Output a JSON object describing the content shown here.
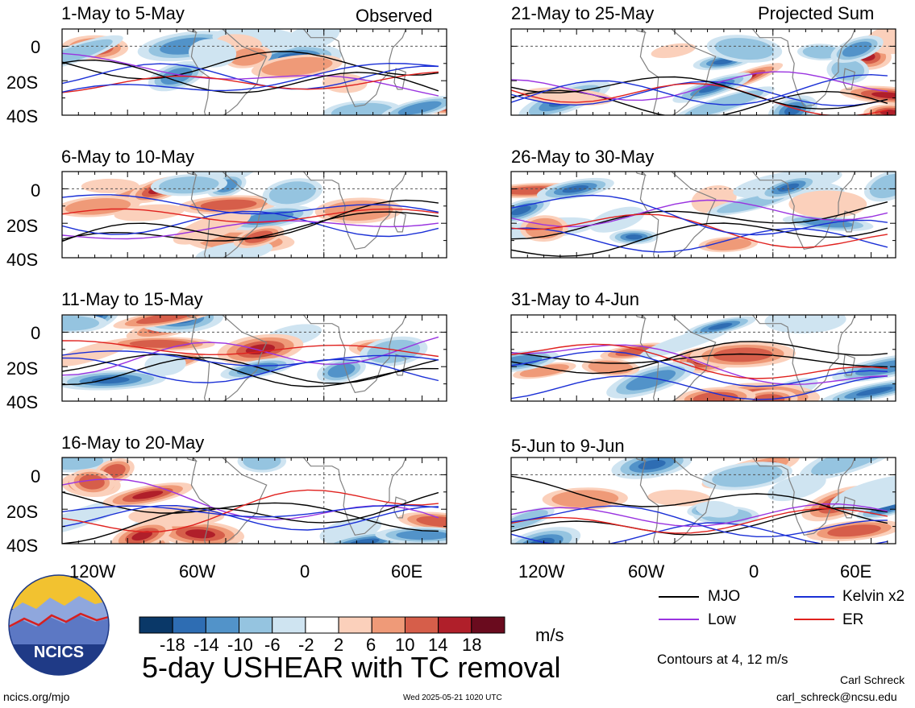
{
  "header": {
    "observed_label": "Observed",
    "projected_label": "Projected Sum"
  },
  "chart_data": {
    "type": "heatmap",
    "title": "5-day USHEAR with TC removal",
    "units": "m/s",
    "panels": [
      {
        "label": "1-May to 5-May",
        "column": "Observed"
      },
      {
        "label": "6-May to 10-May",
        "column": "Observed"
      },
      {
        "label": "11-May to 15-May",
        "column": "Observed"
      },
      {
        "label": "16-May to 20-May",
        "column": "Observed"
      },
      {
        "label": "21-May to 25-May",
        "column": "Projected Sum"
      },
      {
        "label": "26-May to 30-May",
        "column": "Projected Sum"
      },
      {
        "label": "31-May to 4-Jun",
        "column": "Projected Sum"
      },
      {
        "label": "5-Jun to 9-Jun",
        "column": "Projected Sum"
      }
    ],
    "x_ticks": [
      "120W",
      "60W",
      "0",
      "60E"
    ],
    "x_tick_values": [
      -120,
      -60,
      0,
      60
    ],
    "xlim": [
      -160,
      75
    ],
    "y_ticks": [
      "0",
      "20S",
      "40S"
    ],
    "y_tick_values": [
      0,
      -20,
      -40
    ],
    "ylim": [
      -40,
      10
    ],
    "colorbar": {
      "levels": [
        "-18",
        "-14",
        "-10",
        "-6",
        "-2",
        "2",
        "6",
        "10",
        "14",
        "18"
      ],
      "colors": [
        "#0a3868",
        "#2e6db3",
        "#5293c9",
        "#95c4e0",
        "#cfe4f1",
        "#ffffff",
        "#fbd0bb",
        "#ef9a78",
        "#d65e4a",
        "#b01f2a",
        "#6a0b1e"
      ]
    },
    "legend": [
      {
        "name": "MJO",
        "color": "#000000"
      },
      {
        "name": "Kelvin x2",
        "color": "#1a2fd6"
      },
      {
        "name": "Low",
        "color": "#9a33e0"
      },
      {
        "name": "ER",
        "color": "#e0211e"
      }
    ],
    "contour_note": "Contours at 4, 12 m/s"
  },
  "footer": {
    "site": "ncics.org/mjo",
    "timestamp": "Wed 2025-05-21 1020 UTC",
    "author": "Carl Schreck",
    "email": "carl_schreck@ncsu.edu",
    "logo_text": "NCICS"
  }
}
